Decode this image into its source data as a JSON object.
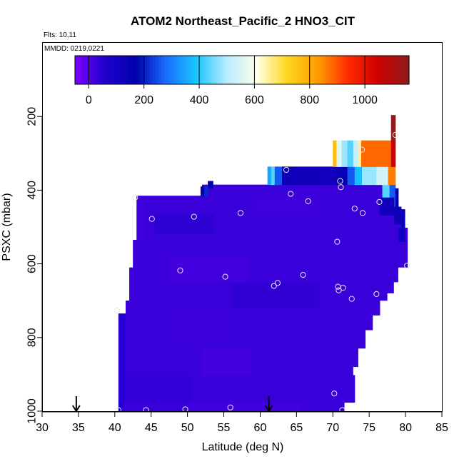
{
  "chart_data": {
    "type": "heatmap",
    "title": "ATOM2 Northeast_Pacific_2 HNO3_CIT",
    "flights_label": "Flts: 10,11",
    "dates_label": "MMDD: 0219,0221",
    "xlabel": "Latitude (deg N)",
    "ylabel": "PSXC (mbar)",
    "xlim": [
      30,
      85
    ],
    "ylim": [
      1000,
      0
    ],
    "x_ticks": [
      30,
      35,
      40,
      45,
      50,
      55,
      60,
      65,
      70,
      75,
      80,
      85
    ],
    "y_ticks": [
      200,
      400,
      600,
      800,
      1000
    ],
    "colorbar": {
      "range": [
        -50,
        1160
      ],
      "ticks": [
        0,
        200,
        400,
        600,
        800,
        1000
      ],
      "colors": [
        "#7a00ff",
        "#2000cc",
        "#0000aa",
        "#1a6dff",
        "#19c6ff",
        "#b8ecff",
        "#ffffe6",
        "#ffd61c",
        "#ff9d00",
        "#ff2a00",
        "#cc0000",
        "#8f1a1a"
      ]
    },
    "arrows_latitude": [
      34.7,
      61.2
    ],
    "fill_levels": [
      {
        "lat": [
          50.1,
          65.6
        ],
        "p": [
          1000,
          976
        ],
        "value": 20
      },
      {
        "lat": [
          40.8,
          50.5
        ],
        "p": [
          976,
          902
        ],
        "value": 35
      },
      {
        "lat": [
          62.1,
          73.0
        ],
        "p": [
          976,
          902
        ],
        "value": 28
      },
      {
        "lat": [
          52.0,
          58.7
        ],
        "p": [
          902,
          828
        ],
        "value": 15
      },
      {
        "lat": [
          48.4,
          55.4
        ],
        "p": [
          792,
          720
        ],
        "value": 25
      },
      {
        "lat": [
          56.2,
          68.1
        ],
        "p": [
          720,
          650
        ],
        "value": 40
      },
      {
        "lat": [
          47.5,
          58.3
        ],
        "p": [
          650,
          580
        ],
        "value": 18
      },
      {
        "lat": [
          55.2,
          68.3
        ],
        "p": [
          580,
          520
        ],
        "value": 30
      },
      {
        "lat": [
          45.4,
          53.6
        ],
        "p": [
          520,
          466
        ],
        "value": 45
      },
      {
        "lat": [
          59.0,
          67.3
        ],
        "p": [
          466,
          414
        ],
        "value": 22
      }
    ],
    "columns": [
      {
        "lat": [
          40.5,
          41.0
        ],
        "p_top": 1000,
        "p_bot": 976,
        "value": 70
      },
      {
        "lat": [
          40.5,
          41.5
        ],
        "p_top": 976,
        "p_bot": 735,
        "value": 50
      },
      {
        "lat": [
          41.5,
          42.0
        ],
        "p_top": 735,
        "p_bot": 700,
        "value": 30
      },
      {
        "lat": [
          42.0,
          42.5
        ],
        "p_top": 700,
        "p_bot": 610,
        "value": 25
      },
      {
        "lat": [
          42.5,
          43.0
        ],
        "p_top": 610,
        "p_bot": 535,
        "value": 30
      },
      {
        "lat": [
          43.0,
          44.0
        ],
        "p_top": 535,
        "p_bot": 420,
        "value": 20
      },
      {
        "lat": [
          51.8,
          52.8
        ],
        "p_top": 412,
        "p_bot": 395,
        "value": 120
      },
      {
        "lat": [
          52.8,
          53.5
        ],
        "p_top": 395,
        "p_bot": 375,
        "value": 155
      }
    ],
    "upper_layers": [
      {
        "p": [
          390,
          415
        ],
        "segments": [
          {
            "lat": [
              51.8,
              52.3
            ],
            "value": 150
          },
          {
            "lat": [
              52.3,
              52.8
            ],
            "value": 210
          }
        ]
      },
      {
        "p": [
          336,
          385
        ],
        "segments": [
          {
            "lat": [
              61.0,
              61.5
            ],
            "value": 350
          },
          {
            "lat": [
              61.5,
              62.0
            ],
            "value": 430
          },
          {
            "lat": [
              62.0,
              63.0
            ],
            "value": 260
          },
          {
            "lat": [
              63.0,
              64.5
            ],
            "value": 130
          },
          {
            "lat": [
              64.5,
              68.0
            ],
            "value": 115
          },
          {
            "lat": [
              68.0,
              70.5
            ],
            "value": 105
          },
          {
            "lat": [
              70.5,
              72.0
            ],
            "value": 140
          },
          {
            "lat": [
              72.0,
              73.0
            ],
            "value": 260
          },
          {
            "lat": [
              73.0,
              74.0
            ],
            "value": 380
          },
          {
            "lat": [
              74.0,
              76.0
            ],
            "value": 480
          },
          {
            "lat": [
              76.0,
              77.6
            ],
            "value": 540
          },
          {
            "lat": [
              77.6,
              78.6
            ],
            "value": 860
          }
        ]
      },
      {
        "p": [
          265,
          336
        ],
        "segments": [
          {
            "lat": [
              70.0,
              70.5
            ],
            "value": 770
          },
          {
            "lat": [
              70.5,
              71.2
            ],
            "value": 560
          },
          {
            "lat": [
              71.2,
              72.0
            ],
            "value": 480
          },
          {
            "lat": [
              72.0,
              72.8
            ],
            "value": 430
          },
          {
            "lat": [
              72.8,
              73.5
            ],
            "value": 520
          },
          {
            "lat": [
              73.5,
              73.9
            ],
            "value": 650
          },
          {
            "lat": [
              73.9,
              78.0
            ],
            "value": 880
          },
          {
            "lat": [
              78.0,
              78.6
            ],
            "value": 1060
          }
        ]
      },
      {
        "p": [
          196,
          265
        ],
        "segments": [
          {
            "lat": [
              78.0,
              78.6
            ],
            "value": 1150
          }
        ]
      }
    ],
    "right_edge": [
      {
        "lat": [
          76.8,
          77.8
        ],
        "p": [
          385,
          420
        ],
        "value": 430
      },
      {
        "lat": [
          77.8,
          78.6
        ],
        "p": [
          385,
          445
        ],
        "value": 260
      },
      {
        "lat": [
          78.6,
          79.0
        ],
        "p": [
          395,
          445
        ],
        "value": 170
      },
      {
        "lat": [
          76.4,
          78.4
        ],
        "p": [
          420,
          468
        ],
        "value": 110
      },
      {
        "lat": [
          78.4,
          79.4
        ],
        "p": [
          445,
          492
        ],
        "value": 120
      },
      {
        "lat": [
          79.4,
          79.9
        ],
        "p": [
          452,
          502
        ],
        "value": 140
      },
      {
        "lat": [
          79.0,
          79.9
        ],
        "p": [
          502,
          540
        ],
        "value": 100
      }
    ],
    "points": [
      {
        "lat": 40.3,
        "p": 727
      },
      {
        "lat": 40.5,
        "p": 997
      },
      {
        "lat": 42.8,
        "p": 420
      },
      {
        "lat": 44.3,
        "p": 997
      },
      {
        "lat": 45.1,
        "p": 478
      },
      {
        "lat": 49.0,
        "p": 618
      },
      {
        "lat": 49.7,
        "p": 995
      },
      {
        "lat": 50.9,
        "p": 472
      },
      {
        "lat": 55.2,
        "p": 635
      },
      {
        "lat": 55.9,
        "p": 990
      },
      {
        "lat": 57.3,
        "p": 462
      },
      {
        "lat": 61.9,
        "p": 660
      },
      {
        "lat": 62.4,
        "p": 652
      },
      {
        "lat": 63.6,
        "p": 345
      },
      {
        "lat": 64.2,
        "p": 410
      },
      {
        "lat": 65.9,
        "p": 630
      },
      {
        "lat": 66.6,
        "p": 430
      },
      {
        "lat": 70.2,
        "p": 952
      },
      {
        "lat": 70.6,
        "p": 540
      },
      {
        "lat": 70.7,
        "p": 662
      },
      {
        "lat": 70.8,
        "p": 672
      },
      {
        "lat": 71.0,
        "p": 375
      },
      {
        "lat": 71.1,
        "p": 392
      },
      {
        "lat": 71.3,
        "p": 997
      },
      {
        "lat": 71.4,
        "p": 665
      },
      {
        "lat": 72.6,
        "p": 695
      },
      {
        "lat": 73.0,
        "p": 450
      },
      {
        "lat": 73.3,
        "p": 290
      },
      {
        "lat": 74.0,
        "p": 290
      },
      {
        "lat": 74.1,
        "p": 462
      },
      {
        "lat": 76.0,
        "p": 682
      },
      {
        "lat": 76.4,
        "p": 432
      },
      {
        "lat": 78.6,
        "p": 250
      },
      {
        "lat": 80.2,
        "p": 605
      }
    ]
  }
}
